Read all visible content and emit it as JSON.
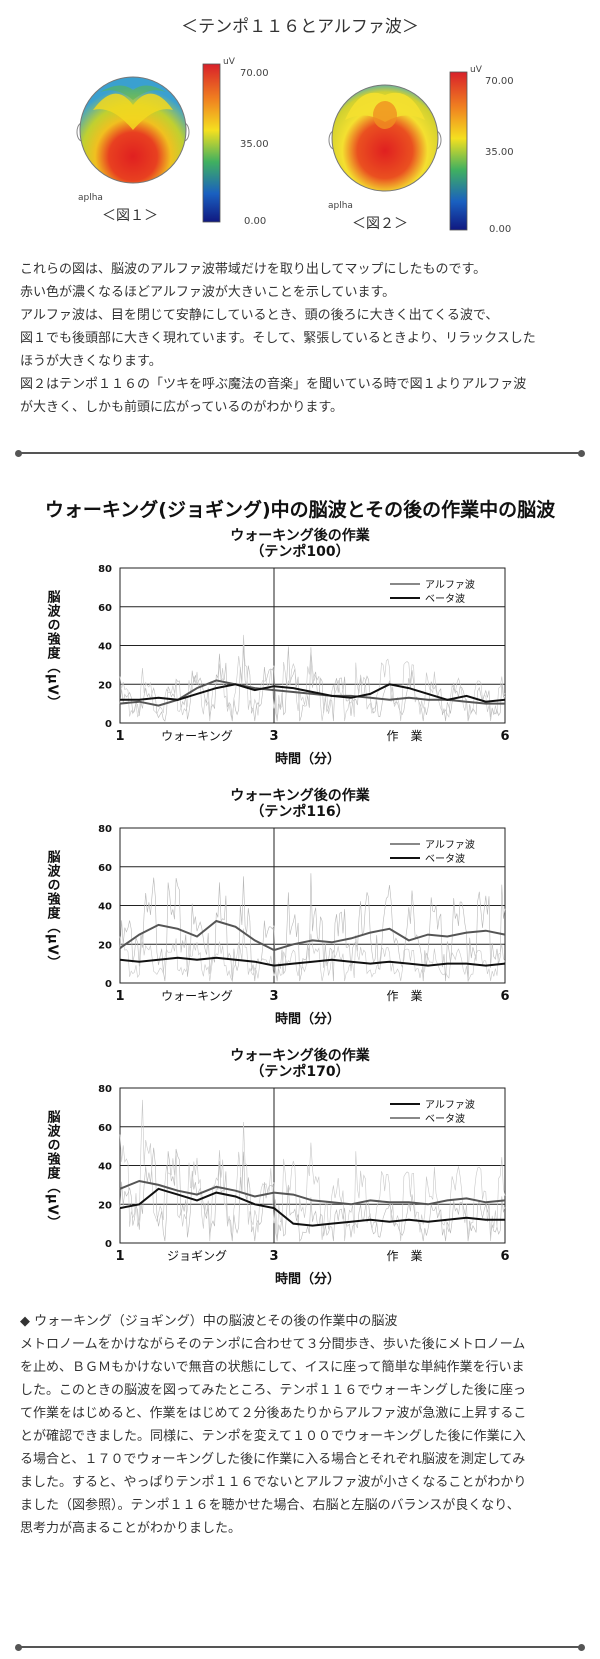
{
  "top_title": "＜テンポ１１６とアルファ波＞",
  "brainmaps": [
    {
      "caption": "＜図１＞",
      "band": "aplha",
      "unit": "uV",
      "scale": [
        "70.00",
        "35.00",
        "0.00"
      ]
    },
    {
      "caption": "＜図２＞",
      "band": "aplha",
      "unit": "uV",
      "scale": [
        "70.00",
        "35.00",
        "0.00"
      ]
    }
  ],
  "intro_lines": [
    "これらの図は、脳波のアルファ波帯域だけを取り出してマップにしたものです。",
    "赤い色が濃くなるほどアルファ波が大きいことを示しています。",
    "アルファ波は、目を閉じて安静にしているとき、頭の後ろに大きく出てくる波で、",
    "図１でも後頭部に大きく現れています。そして、緊張しているときより、リラックスした",
    "ほうが大きくなります。",
    "図２はテンポ１１６の「ツキを呼ぶ魔法の音楽」を聞いている時で図１よりアルファ波",
    "が大きく、しかも前頭に広がっているのがわかります。"
  ],
  "section_title": "ウォーキング(ジョギング)中の脳波とその後の作業中の脳波",
  "chart_data": [
    {
      "type": "line",
      "title": "ウォーキング後の作業",
      "subtitle": "（テンポ100）",
      "ylabel": "脳波の強度（μV）",
      "xlabel": "時間（分）",
      "x_ticks": [
        "1",
        "3",
        "6"
      ],
      "x_region_labels": [
        "ウォーキング",
        "作　業"
      ],
      "ylim": [
        0,
        80
      ],
      "y_ticks": [
        "0",
        "20",
        "40",
        "60",
        "80"
      ],
      "xlim": [
        1,
        6
      ],
      "grid": true,
      "legend": "top-right",
      "series": [
        {
          "name": "アルファ波",
          "color": "#888888",
          "x": [
            1,
            1.25,
            1.5,
            1.75,
            2,
            2.25,
            2.5,
            2.75,
            3,
            3.25,
            3.5,
            3.75,
            4,
            4.25,
            4.5,
            4.75,
            5,
            5.25,
            5.5,
            5.75,
            6
          ],
          "values": [
            10,
            11,
            9,
            12,
            18,
            22,
            20,
            18,
            17,
            16,
            15,
            14,
            14,
            13,
            12,
            13,
            12,
            12,
            11,
            10,
            10
          ]
        },
        {
          "name": "ベータ波",
          "color": "#111111",
          "x": [
            1,
            1.25,
            1.5,
            1.75,
            2,
            2.25,
            2.5,
            2.75,
            3,
            3.25,
            3.5,
            3.75,
            4,
            4.25,
            4.5,
            4.75,
            5,
            5.25,
            5.5,
            5.75,
            6
          ],
          "values": [
            12,
            12,
            13,
            12,
            15,
            18,
            20,
            17,
            19,
            18,
            16,
            14,
            13,
            15,
            20,
            18,
            15,
            12,
            14,
            11,
            12
          ]
        }
      ]
    },
    {
      "type": "line",
      "title": "ウォーキング後の作業",
      "subtitle": "（テンポ116）",
      "ylabel": "脳波の強度（μV）",
      "xlabel": "時間（分）",
      "x_ticks": [
        "1",
        "3",
        "6"
      ],
      "x_region_labels": [
        "ウォーキング",
        "作　業"
      ],
      "ylim": [
        0,
        80
      ],
      "y_ticks": [
        "0",
        "20",
        "40",
        "60",
        "80"
      ],
      "xlim": [
        1,
        6
      ],
      "grid": true,
      "legend": "top-right",
      "series": [
        {
          "name": "アルファ波",
          "color": "#888888",
          "x": [
            1,
            1.25,
            1.5,
            1.75,
            2,
            2.25,
            2.5,
            2.75,
            3,
            3.25,
            3.5,
            3.75,
            4,
            4.25,
            4.5,
            4.75,
            5,
            5.25,
            5.5,
            5.75,
            6
          ],
          "values": [
            18,
            25,
            30,
            28,
            24,
            32,
            29,
            22,
            17,
            20,
            22,
            21,
            23,
            26,
            28,
            22,
            25,
            24,
            26,
            27,
            25
          ]
        },
        {
          "name": "ベータ波",
          "color": "#111111",
          "x": [
            1,
            1.25,
            1.5,
            1.75,
            2,
            2.25,
            2.5,
            2.75,
            3,
            3.25,
            3.5,
            3.75,
            4,
            4.25,
            4.5,
            4.75,
            5,
            5.25,
            5.5,
            5.75,
            6
          ],
          "values": [
            12,
            11,
            12,
            13,
            12,
            13,
            12,
            11,
            9,
            10,
            11,
            12,
            11,
            10,
            11,
            10,
            9,
            10,
            10,
            9,
            10
          ]
        }
      ]
    },
    {
      "type": "line",
      "title": "ウォーキング後の作業",
      "subtitle": "（テンポ170）",
      "ylabel": "脳波の強度（μV）",
      "xlabel": "時間（分）",
      "x_ticks": [
        "1",
        "3",
        "6"
      ],
      "x_region_labels": [
        "ジョギング",
        "作　業"
      ],
      "ylim": [
        0,
        80
      ],
      "y_ticks": [
        "0",
        "20",
        "40",
        "60",
        "80"
      ],
      "xlim": [
        1,
        6
      ],
      "grid": true,
      "legend": "top-right",
      "series": [
        {
          "name": "アルファ波",
          "color": "#111111",
          "x": [
            1,
            1.25,
            1.5,
            1.75,
            2,
            2.25,
            2.5,
            2.75,
            3,
            3.25,
            3.5,
            3.75,
            4,
            4.25,
            4.5,
            4.75,
            5,
            5.25,
            5.5,
            5.75,
            6
          ],
          "values": [
            18,
            20,
            28,
            25,
            22,
            26,
            24,
            20,
            18,
            10,
            9,
            10,
            11,
            12,
            11,
            12,
            11,
            12,
            13,
            12,
            12
          ]
        },
        {
          "name": "ベータ波",
          "color": "#888888",
          "x": [
            1,
            1.25,
            1.5,
            1.75,
            2,
            2.25,
            2.5,
            2.75,
            3,
            3.25,
            3.5,
            3.75,
            4,
            4.25,
            4.5,
            4.75,
            5,
            5.25,
            5.5,
            5.75,
            6
          ],
          "values": [
            28,
            32,
            30,
            27,
            25,
            29,
            27,
            24,
            26,
            25,
            22,
            21,
            20,
            22,
            21,
            21,
            20,
            22,
            23,
            21,
            22
          ]
        }
      ]
    }
  ],
  "bottom_lines": [
    "◆ ウォーキング（ジョギング）中の脳波とその後の作業中の脳波",
    "メトロノームをかけながらそのテンポに合わせて３分間歩き、歩いた後にメトロノーム",
    "を止め、ＢＧＭもかけないで無音の状態にして、イスに座って簡単な単純作業を行いま",
    "した。このときの脳波を図ってみたところ、テンポ１１６でウォーキングした後に座っ",
    "て作業をはじめると、作業をはじめて２分後あたりからアルファ波が急激に上昇するこ",
    "とが確認できました。同様に、テンポを変えて１００でウォーキングした後に作業に入",
    "る場合と、１７０でウォーキングした後に作業に入る場合とそれぞれ脳波を測定してみ",
    "ました。すると、やっぱりテンポ１１６でないとアルファ波が小さくなることがわかり",
    "ました（図参照）。テンポ１１６を聴かせた場合、右脳と左脳のバランスが良くなり、",
    "思考力が高まることがわかりました。"
  ]
}
